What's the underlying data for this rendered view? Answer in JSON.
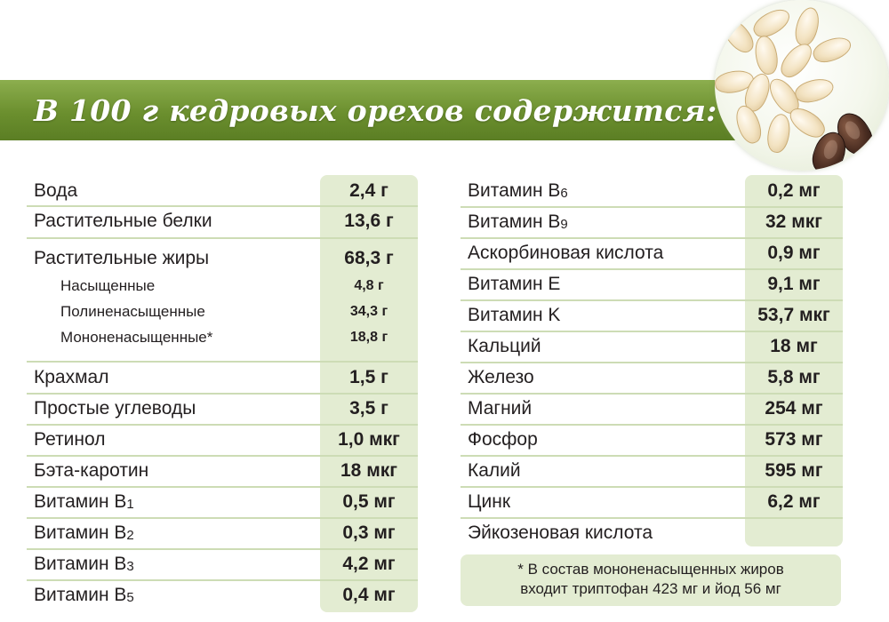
{
  "header": {
    "title": "В 100 г кедровых орехов содержится:"
  },
  "left": [
    {
      "label": "Вода",
      "sub": "",
      "value": "2,4 г"
    },
    {
      "label": "Растительные белки",
      "sub": "",
      "value": "13,6 г"
    },
    {
      "label": "Растительные жиры",
      "sub": "",
      "value": "68,3 г"
    },
    {
      "label": "Насыщенные",
      "sub": "",
      "value": "4,8 г"
    },
    {
      "label": "Полиненасыщенные",
      "sub": "",
      "value": "34,3 г"
    },
    {
      "label": "Мононенасыщенные*",
      "sub": "",
      "value": "18,8 г"
    },
    {
      "label": "Крахмал",
      "sub": "",
      "value": "1,5 г"
    },
    {
      "label": "Простые углеводы",
      "sub": "",
      "value": "3,5 г"
    },
    {
      "label": "Ретинол",
      "sub": "",
      "value": "1,0 мкг"
    },
    {
      "label": "Бэта-каротин",
      "sub": "",
      "value": "18 мкг"
    },
    {
      "label": "Витамин B",
      "sub": "1",
      "value": "0,5 мг"
    },
    {
      "label": "Витамин B",
      "sub": "2",
      "value": "0,3 мг"
    },
    {
      "label": "Витамин B",
      "sub": "3",
      "value": "4,2 мг"
    },
    {
      "label": "Витамин B",
      "sub": "5",
      "value": "0,4 мг"
    }
  ],
  "right": [
    {
      "label": "Витамин B",
      "sub": "6",
      "value": "0,2 мг"
    },
    {
      "label": "Витамин B",
      "sub": "9",
      "value": "32 мкг"
    },
    {
      "label": "Аскорбиновая кислота",
      "sub": "",
      "value": "0,9 мг"
    },
    {
      "label": "Витамин E",
      "sub": "",
      "value": "9,1 мг"
    },
    {
      "label": "Витамин K",
      "sub": "",
      "value": "53,7 мкг"
    },
    {
      "label": "Кальций",
      "sub": "",
      "value": "18 мг"
    },
    {
      "label": "Железо",
      "sub": "",
      "value": "5,8 мг"
    },
    {
      "label": "Магний",
      "sub": "",
      "value": "254 мг"
    },
    {
      "label": "Фосфор",
      "sub": "",
      "value": "573 мг"
    },
    {
      "label": "Калий",
      "sub": "",
      "value": "595 мг"
    },
    {
      "label": "Цинк",
      "sub": "",
      "value": "6,2 мг"
    },
    {
      "label": "Эйкозеновая кислота",
      "sub": "",
      "value": ""
    }
  ],
  "footnote": {
    "line1": "* В состав мононенасыщенных жиров",
    "line2": "входит триптофан 423 мг и йод 56 мг"
  },
  "colors": {
    "banner": "#6b8f2e",
    "cell": "#e3ecd2",
    "divider": "#cddcb5"
  },
  "illustration": {
    "icon": "pine-nuts-icon"
  }
}
